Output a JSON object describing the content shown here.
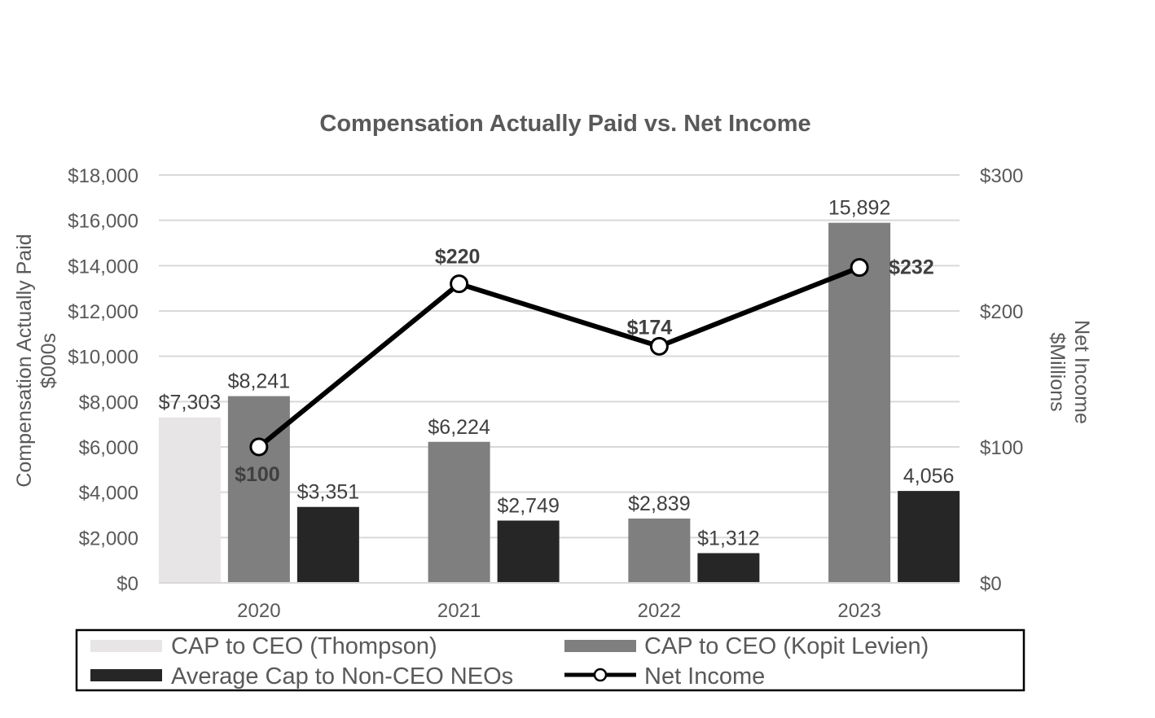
{
  "chart_data": {
    "type": "bar",
    "title": "Compensation Actually Paid vs. Net Income",
    "categories": [
      "2020",
      "2021",
      "2022",
      "2023"
    ],
    "ylabel": [
      "Compensation Actually Paid",
      "$000s"
    ],
    "y2label": [
      "Net Income",
      "$Millions"
    ],
    "ylim": [
      0,
      18000
    ],
    "y2lim": [
      0,
      300
    ],
    "yticks": [
      "$0",
      "$2,000",
      "$4,000",
      "$6,000",
      "$8,000",
      "$10,000",
      "$12,000",
      "$14,000",
      "$16,000",
      "$18,000"
    ],
    "y2ticks": [
      "$0",
      "$100",
      "$200",
      "$300"
    ],
    "grid": true,
    "series": [
      {
        "name": "CAP to CEO (Thompson)",
        "kind": "bar",
        "color": "#e7e5e6",
        "values": [
          7303,
          null,
          null,
          null
        ],
        "labels": [
          "$7,303",
          "",
          "",
          ""
        ]
      },
      {
        "name": "CAP to CEO (Kopit Levien)",
        "kind": "bar",
        "color": "#7f7f7f",
        "values": [
          8241,
          6224,
          2839,
          15892
        ],
        "labels": [
          "$8,241",
          "$6,224",
          "$2,839",
          "15,892"
        ]
      },
      {
        "name": "Average Cap to Non-CEO NEOs",
        "kind": "bar",
        "color": "#262626",
        "values": [
          3351,
          2749,
          1312,
          4056
        ],
        "labels": [
          "$3,351",
          "$2,749",
          "$1,312",
          "4,056"
        ]
      },
      {
        "name": "Net Income",
        "kind": "line",
        "axis": "y2",
        "color": "#000000",
        "values": [
          100,
          220,
          174,
          232
        ],
        "labels": [
          "$100",
          "$220",
          "$174",
          "$232"
        ]
      }
    ],
    "legend": {
      "position": "bottom",
      "items": [
        "CAP to CEO (Thompson)",
        "CAP to CEO (Kopit Levien)",
        "Average Cap to Non-CEO NEOs",
        "Net Income"
      ]
    }
  }
}
